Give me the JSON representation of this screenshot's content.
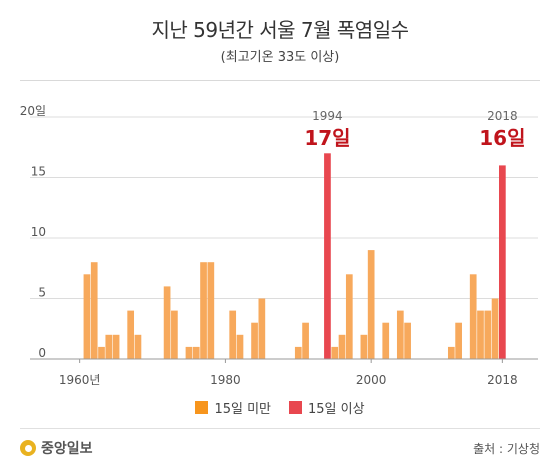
{
  "header": {
    "title": "지난 59년간 서울 7월 폭염일수",
    "subtitle": "(최고기온 33도 이상)"
  },
  "chart_data": {
    "type": "bar",
    "x": [
      1960,
      1961,
      1962,
      1963,
      1964,
      1965,
      1966,
      1967,
      1968,
      1969,
      1970,
      1971,
      1972,
      1973,
      1974,
      1975,
      1976,
      1977,
      1978,
      1979,
      1980,
      1981,
      1982,
      1983,
      1984,
      1985,
      1986,
      1987,
      1988,
      1989,
      1990,
      1991,
      1992,
      1993,
      1994,
      1995,
      1996,
      1997,
      1998,
      1999,
      2000,
      2001,
      2002,
      2003,
      2004,
      2005,
      2006,
      2007,
      2008,
      2009,
      2010,
      2011,
      2012,
      2013,
      2014,
      2015,
      2016,
      2017,
      2018
    ],
    "values": [
      0,
      7,
      8,
      1,
      2,
      2,
      0,
      4,
      2,
      0,
      0,
      0,
      6,
      4,
      0,
      1,
      1,
      8,
      8,
      0,
      0,
      4,
      2,
      0,
      3,
      5,
      0,
      0,
      0,
      0,
      1,
      3,
      0,
      0,
      17,
      1,
      2,
      7,
      0,
      2,
      9,
      0,
      3,
      0,
      4,
      3,
      0,
      0,
      0,
      0,
      0,
      1,
      3,
      0,
      7,
      4,
      4,
      5,
      16
    ],
    "threshold": 15,
    "ylim": [
      0,
      20
    ],
    "yticks": [
      "0",
      "5",
      "10",
      "15",
      "20일"
    ],
    "xticks": [
      {
        "value": 1960,
        "label": "1960년"
      },
      {
        "value": 1980,
        "label": "1980"
      },
      {
        "value": 2000,
        "label": "2000"
      },
      {
        "value": 2018,
        "label": "2018"
      }
    ],
    "annotations": [
      {
        "year": 1994,
        "year_label": "1994",
        "value_label": "17일"
      },
      {
        "year": 2018,
        "year_label": "2018",
        "value_label": "16일"
      }
    ],
    "colors": {
      "below": "#f7a95c",
      "above": "#e8474f",
      "annotation": "#c0141c",
      "grid": "#dcdcdc"
    },
    "grid": true
  },
  "legend": {
    "items": [
      {
        "label": "15일 미만",
        "color": "#f7951d"
      },
      {
        "label": "15일 이상",
        "color": "#e8474f"
      }
    ]
  },
  "footer": {
    "logo_text": "중앙일보",
    "source": "출처 : 기상청"
  }
}
